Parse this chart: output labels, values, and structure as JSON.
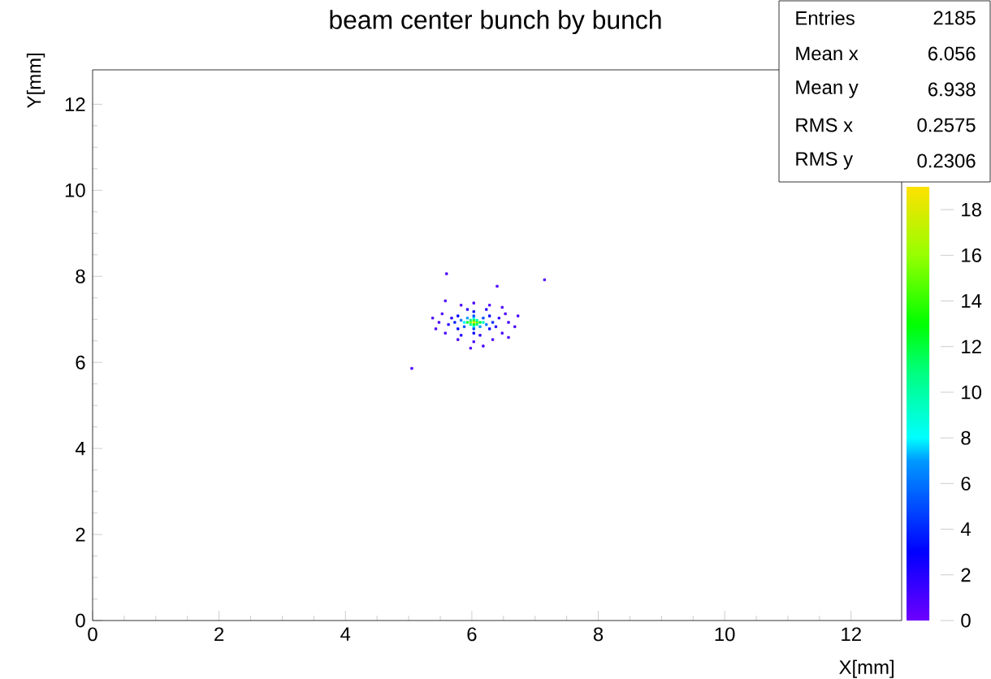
{
  "chart_data": {
    "type": "scatter",
    "title": "beam center bunch by bunch",
    "xlabel": "X[mm]",
    "ylabel": "Y[mm]",
    "xlim": [
      0,
      12.8
    ],
    "ylim": [
      0,
      12.8
    ],
    "xticks": [
      0,
      2,
      4,
      6,
      8,
      10,
      12
    ],
    "yticks": [
      0,
      2,
      4,
      6,
      8,
      10,
      12
    ],
    "clim": [
      0,
      19
    ],
    "cticks": [
      0,
      2,
      4,
      6,
      8,
      10,
      12,
      14,
      16,
      18
    ],
    "marker": "square",
    "annotations": [
      "Entries",
      "2185",
      "Mean x",
      "6.056",
      "Mean y",
      "6.938",
      "RMS x",
      "0.2575",
      "RMS y",
      "0.2306"
    ],
    "series": [
      {
        "x": [
          6.03,
          5.98,
          6.08,
          6.03,
          6.03,
          5.93,
          6.13,
          5.98,
          6.08,
          5.98,
          6.08,
          6.18,
          5.88,
          6.03,
          6.03,
          5.93,
          6.13,
          5.83,
          6.23,
          6.03,
          6.03,
          5.88,
          6.18,
          5.73,
          6.33,
          6.03,
          6.03,
          5.78,
          6.28,
          5.78,
          6.28,
          5.68,
          6.38,
          5.93,
          6.13,
          5.63,
          6.43,
          5.83,
          6.23,
          5.48,
          6.58,
          6.03,
          6.03,
          5.53,
          6.53,
          5.58,
          6.48,
          5.83,
          6.28,
          5.78,
          6.33,
          5.38,
          6.68,
          5.6,
          7.15,
          5.05,
          6.4,
          5.58,
          6.48,
          6.18,
          5.43,
          6.73,
          5.98,
          6.58
        ],
        "values": [
          6.93,
          6.93,
          6.93,
          6.98,
          6.88,
          6.93,
          6.93,
          6.98,
          6.88,
          6.88,
          6.98,
          6.93,
          6.93,
          7.03,
          6.83,
          7.03,
          6.83,
          6.98,
          6.88,
          7.08,
          6.78,
          6.83,
          7.03,
          6.93,
          6.93,
          7.18,
          6.68,
          7.08,
          6.78,
          6.78,
          7.08,
          7.03,
          6.83,
          7.23,
          6.63,
          6.88,
          7.03,
          6.63,
          7.23,
          6.93,
          6.93,
          7.38,
          6.48,
          7.13,
          7.13,
          6.68,
          6.68,
          7.33,
          7.33,
          6.53,
          6.53,
          7.03,
          6.83,
          8.06,
          7.92,
          5.86,
          7.77,
          7.43,
          7.28,
          6.38,
          6.78,
          7.08,
          6.33,
          6.58
        ],
        "cvalues": [
          19,
          16,
          15,
          14,
          13,
          12,
          12,
          11,
          11,
          10,
          10,
          9,
          8,
          8,
          8,
          7,
          7,
          6,
          6,
          5,
          5,
          5,
          5,
          4,
          4,
          3,
          3,
          3,
          3,
          3,
          3,
          2,
          2,
          2,
          2,
          2,
          2,
          2,
          2,
          1,
          1,
          1,
          1,
          1,
          1,
          1,
          1,
          1,
          1,
          1,
          1,
          1,
          1,
          1,
          1,
          1,
          1,
          1,
          1,
          1,
          1,
          1,
          1,
          1
        ]
      }
    ]
  }
}
